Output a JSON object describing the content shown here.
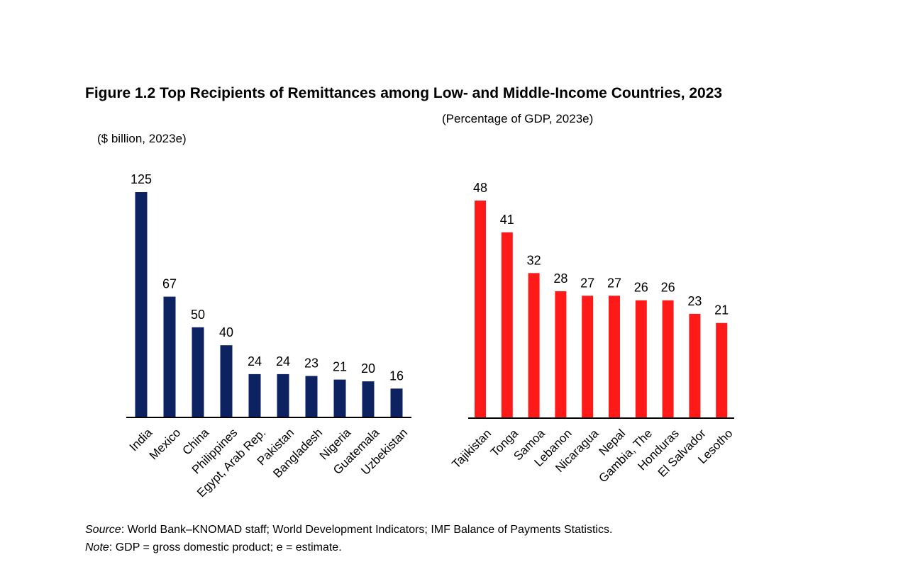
{
  "title": "Figure 1.2 Top Recipients of Remittances among Low- and Middle-Income Countries, 2023",
  "footnotes": {
    "source_label": "Source",
    "source_text": ": World Bank–KNOMAD staff; World Development Indicators; IMF Balance of Payments Statistics.",
    "note_label": "Note",
    "note_text": ": GDP = gross domestic product; e = estimate."
  },
  "chart_data": [
    {
      "type": "bar",
      "subtitle": "($ billion, 2023e)",
      "categories": [
        "India",
        "Mexico",
        "China",
        "Philippines",
        "Egypt, Arab Rep.",
        "Pakistan",
        "Bangladesh",
        "Nigeria",
        "Guatemala",
        "Uzbekistan"
      ],
      "values": [
        125,
        67,
        50,
        40,
        24,
        24,
        23,
        21,
        20,
        16
      ],
      "color": "#0d2260",
      "data_labels": true,
      "grid": false,
      "yaxis_visible": false
    },
    {
      "type": "bar",
      "subtitle": "(Percentage of GDP, 2023e)",
      "categories": [
        "Tajikistan",
        "Tonga",
        "Samoa",
        "Lebanon",
        "Nicaragua",
        "Nepal",
        "Gambia, The",
        "Honduras",
        "El Salvador",
        "Lesotho"
      ],
      "values": [
        48,
        41,
        32,
        28,
        27,
        27,
        26,
        26,
        23,
        21
      ],
      "color": "#ff1a1a",
      "data_labels": true,
      "grid": false,
      "yaxis_visible": false
    }
  ]
}
